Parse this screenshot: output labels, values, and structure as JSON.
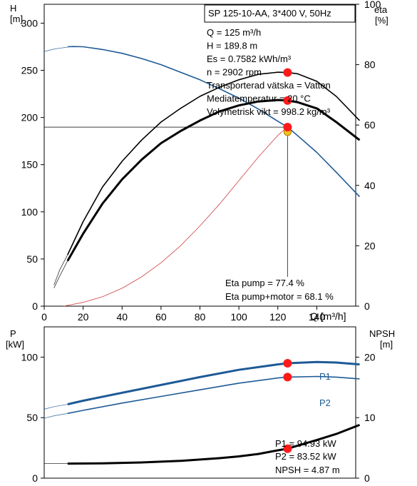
{
  "chart_data": [
    {
      "type": "line",
      "axes": {
        "x": {
          "label": "Q [m³/h]",
          "lim": [
            0,
            160
          ],
          "ticks": [
            0,
            20,
            40,
            60,
            80,
            100,
            120,
            140
          ]
        },
        "y_left": {
          "label_line1": "H",
          "label_line2": "[m]",
          "lim": [
            0,
            320
          ],
          "ticks": [
            0,
            50,
            100,
            150,
            200,
            250,
            300
          ]
        },
        "y_right": {
          "label_line1": "eta",
          "label_line2": "[%]",
          "lim": [
            0,
            100
          ],
          "ticks": [
            0,
            20,
            40,
            60,
            80,
            100
          ]
        }
      },
      "info_box": {
        "title": "SP 125-10-AA, 3*400 V, 50Hz",
        "lines": [
          "Q = 125 m³/h",
          "H = 189.8 m",
          "Es = 0.7582 kWh/m³",
          "n = 2902 rpm",
          "Transporterad vätska = Vatten",
          "Mediatemperatur = 20 °C",
          "Volymetrisk vikt = 998.2 kg/m³"
        ]
      },
      "eta_labels": [
        "Eta pump = 77.4 %",
        "Eta pump+motor = 68.1 %"
      ],
      "series": [
        {
          "id": "H",
          "axis": "left",
          "color": "#1e5a96",
          "dashed_x": [
            0,
            2,
            5,
            8,
            10,
            12
          ],
          "dashed_y": [
            270,
            271,
            272.5,
            273.5,
            274,
            274.5
          ],
          "x": [
            12,
            15,
            20,
            30,
            40,
            50,
            60,
            70,
            80,
            90,
            100,
            110,
            120,
            125,
            130,
            140,
            150,
            162
          ],
          "y": [
            275,
            275.2,
            275,
            272,
            268,
            262.5,
            256,
            248,
            240,
            230.5,
            220.5,
            209,
            196,
            189.8,
            181,
            163,
            142,
            116
          ]
        },
        {
          "id": "eta_pump",
          "axis": "right",
          "color": "#000000",
          "dashed_x": [
            5,
            8,
            12
          ],
          "dashed_y": [
            7,
            12,
            17
          ],
          "x": [
            12,
            20,
            30,
            40,
            50,
            60,
            70,
            80,
            90,
            100,
            110,
            120,
            125,
            130,
            140,
            150,
            162
          ],
          "y": [
            17,
            28,
            39.5,
            48,
            55,
            61,
            65.5,
            69.5,
            72.5,
            75,
            76.8,
            77.5,
            77.4,
            77,
            74.5,
            69.5,
            61.5
          ]
        },
        {
          "id": "eta_pump_motor",
          "axis": "right",
          "color": "#000000",
          "thick": true,
          "dashed_x": [
            5,
            8,
            12
          ],
          "dashed_y": [
            6,
            10,
            15
          ],
          "x": [
            12,
            20,
            30,
            40,
            50,
            60,
            70,
            80,
            90,
            100,
            110,
            120,
            125,
            130,
            140,
            150,
            162
          ],
          "y": [
            15,
            24,
            34,
            42,
            48.5,
            54,
            58,
            61.5,
            64.5,
            66.5,
            67.8,
            68.3,
            68.1,
            67.6,
            65.5,
            61,
            55
          ]
        },
        {
          "id": "system",
          "axis": "left",
          "color": "#d04040",
          "thin": true,
          "x": [
            10,
            20,
            30,
            40,
            50,
            60,
            70,
            80,
            90,
            100,
            110,
            120,
            125
          ],
          "y": [
            0,
            4,
            10,
            19,
            31,
            46,
            64,
            85,
            108,
            133,
            158,
            181,
            190
          ]
        }
      ],
      "operating_point": {
        "Q": 125,
        "H": 189.8,
        "eta_pump": 77.4,
        "eta_pump_motor": 68.1
      },
      "grid": false
    },
    {
      "type": "line",
      "axes": {
        "x": {
          "lim": [
            0,
            160
          ]
        },
        "y_left": {
          "label_line1": "P",
          "label_line2": "[kW]",
          "lim": [
            0,
            125
          ],
          "ticks": [
            0,
            50,
            100
          ]
        },
        "y_right": {
          "label_line1": "NPSH",
          "label_line2": "[m]",
          "lim": [
            0,
            25
          ],
          "ticks": [
            0,
            10,
            20
          ]
        }
      },
      "series": [
        {
          "id": "P1",
          "name": "P1",
          "axis": "left",
          "color": "#1e5a96",
          "thick": true,
          "dashed_x": [
            0,
            5,
            12
          ],
          "dashed_y": [
            57,
            59,
            61
          ],
          "x": [
            12,
            20,
            40,
            60,
            80,
            100,
            120,
            125,
            140,
            150,
            162
          ],
          "y": [
            61,
            64,
            70.5,
            77,
            83.5,
            89.5,
            94,
            94.93,
            96,
            95.5,
            94
          ]
        },
        {
          "id": "P2",
          "name": "P2",
          "axis": "left",
          "color": "#1e5a96",
          "dashed_x": [
            0,
            5,
            12
          ],
          "dashed_y": [
            49.5,
            51.5,
            53.5
          ],
          "x": [
            12,
            20,
            40,
            60,
            80,
            100,
            120,
            125,
            140,
            150,
            162
          ],
          "y": [
            53.5,
            56,
            62,
            67.5,
            73,
            78.5,
            82.8,
            83.52,
            84,
            83.5,
            82
          ]
        },
        {
          "id": "NPSH",
          "axis": "right",
          "color": "#000000",
          "thick": true,
          "dashed_x": [
            0,
            12
          ],
          "dashed_y": [
            2.4,
            2.4
          ],
          "x": [
            12,
            30,
            50,
            70,
            90,
            100,
            110,
            120,
            125,
            140,
            150,
            162
          ],
          "y": [
            2.4,
            2.45,
            2.6,
            2.85,
            3.3,
            3.6,
            4.0,
            4.6,
            4.87,
            6.3,
            7.3,
            8.8
          ]
        }
      ],
      "operating_point": {
        "Q": 125,
        "P1": 94.93,
        "P2": 83.52,
        "NPSH": 4.87
      },
      "result_labels": [
        "P1 = 94.93 kW",
        "P2 = 83.52 kW",
        "NPSH = 4.87 m"
      ],
      "grid": false
    }
  ]
}
